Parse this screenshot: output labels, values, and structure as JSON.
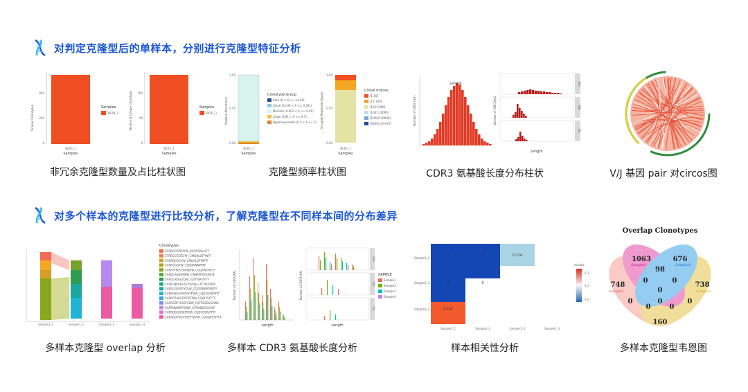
{
  "section1": {
    "title": "对判定克隆型后的单样本，分别进行克隆型特征分析"
  },
  "section2": {
    "title": "对多个样本的克隆型进行比较分析，了解克隆型在不同样本间的分布差异"
  },
  "captions": {
    "c1": "非冗余克隆型数量及占比柱状图",
    "c2": "克隆型频率柱状图",
    "c3": "CDR3 氨基酸长度分布柱状",
    "c4": "V/J 基因 pair 对circos图",
    "c5": "多样本克隆型 overlap 分析",
    "c6": "多样本 CDR3 氨基酸长度分析",
    "c7": "样本相关性分析",
    "c8": "多样本克隆型韦恩图"
  },
  "venn": {
    "title": "Overlap Clonotypes",
    "values": {
      "a": "1063",
      "b": "676",
      "c": "748",
      "d": "738",
      "center_top": "98",
      "bottom": "160",
      "zero": "0"
    },
    "labels": {
      "s1": "Sample1",
      "s2": "Sample2",
      "s3": "Sample3",
      "s4": "Sample4"
    }
  },
  "heatmap": {
    "cells": {
      "c13": "0",
      "c23": "0",
      "c33": "0.114",
      "c12": "0",
      "c22": "0",
      "c11": "0.201"
    },
    "rows": [
      "Sample1_4",
      "Sample1_3",
      "Sample1_2"
    ],
    "cols": [
      "Sample1_1",
      "Sample1_2",
      "Sample1_3",
      "Sample1_4"
    ],
    "legend": {
      "title": "minuto",
      "t1": "0.2",
      "t2": "0.1",
      "t3": "0.0"
    }
  },
  "plot1": {
    "yA": "Unique Clonotypes",
    "yB": "Percent of Unique Clonotype",
    "legend_title": "Samples",
    "legend_item": "BCR1_1",
    "xlabel": "Samples",
    "xtick": "BCR1_1",
    "yticksA": [
      "400",
      "200",
      "0"
    ],
    "yticksB": [
      "100",
      "50",
      "0"
    ]
  },
  "plot2": {
    "yA": "Relative Abundance",
    "yB": "Occupied Repertoire Space",
    "legendA_title": "Clonotype Group",
    "legendA": [
      "Rare (0 < X <= 1e-04)",
      "Small (1e-04 < X <= 0.001)",
      "Medium (0.001 < X <= 0.01)",
      "Large (0.01 < X <= 0.1)",
      "Hyperexpanded (0.1 < X <= 1)"
    ],
    "legendB_title": "Clonal Indices",
    "legendB": [
      "[1:10]",
      "[11:100]",
      "[101:1000]",
      "[1001:10000]",
      "[10001:30000]",
      "[30001:1e+05]"
    ],
    "xlabel": "Samples",
    "xtick": "BCR1_1",
    "yticks": [
      "1.00",
      "0.75",
      "0.50",
      "0.25",
      "0.00"
    ]
  },
  "plot3": {
    "ylabel": "Number of CDR3 (AA)",
    "xlabel": "Length",
    "ylabelB": "Number of CDR3(AA)",
    "xlabelB": "Length",
    "strips": [
      "IGH",
      "IGK",
      "IGL"
    ]
  },
  "plot5": {
    "legend_title": "Clonotypes",
    "items": [
      "CARRAGRPFDYW_CQQYGNLLLTF",
      "CTRRGGTLTGYPH_CMQALQTPWTF",
      "CARRDGGGYW_CMQALQTPWTF",
      "CARRGGGYW_CSQDAWNPRTF",
      "CARRYFPGGSNYDDW_CQQANSFPLTF",
      "CARDLAKGGMKW_CNNRPFKAAANSF",
      "CARDLAKGLVDW_CQQYSPSTFTF",
      "CARRLNKRRGGCYSDW_CATTKGPRRF",
      "CARDLGRSDYYDLW_CQQYNNWPPWTF",
      "CARRHSGGHYSYYFFDW_CQQYGSSPRTF",
      "CARDFRAKGGYIPSTDW_CQQLYSYFTF",
      "CARAGDFYGSSFSDW_CQTRSSDVGAWV",
      "CARRNWWPFDMW_CSTWDDSCASSF",
      "CARRDGGDSKPYDW_CQQYQSPLPFTF",
      "CARAQGRSGVSSSFYDGW_CQQLWSSFPLTF"
    ],
    "xticks": [
      "Sample1_1",
      "Sample1_2",
      "Sample1_3",
      "Sample1_4"
    ]
  },
  "plot6": {
    "ylabelA": "Number of CDR3(AA)",
    "xlabelA": "Length",
    "ylabelB": "Number of CDR3(AA)",
    "xlabelB": "Length",
    "legend_title": "SAMPLE",
    "legend": [
      "Sample1",
      "Sample2",
      "Sample3",
      "Sample4"
    ],
    "strips": [
      "IGH",
      "IGK",
      "IGL"
    ]
  },
  "colors": {
    "accent": "#1a56d6",
    "orange": "#f04e23",
    "heat_blue": "#1447b4",
    "heat_light": "#a9d4e4",
    "heat_red": "#f25a2d"
  }
}
